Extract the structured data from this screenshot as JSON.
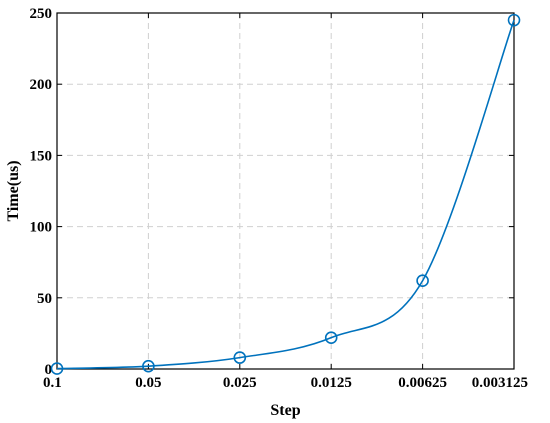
{
  "chart_data": {
    "type": "line",
    "categories": [
      "0.1",
      "0.05",
      "0.025",
      "0.0125",
      "0.00625",
      "0.003125"
    ],
    "series": [
      {
        "values": [
          0.3,
          2,
          8,
          22,
          62,
          245
        ],
        "color": "#0072bd",
        "marker": "circle"
      }
    ],
    "xlabel": "Step",
    "ylabel": "Time(us)",
    "ylim": [
      0,
      250
    ],
    "yticks": [
      0,
      50,
      100,
      150,
      200,
      250
    ],
    "grid": true
  }
}
